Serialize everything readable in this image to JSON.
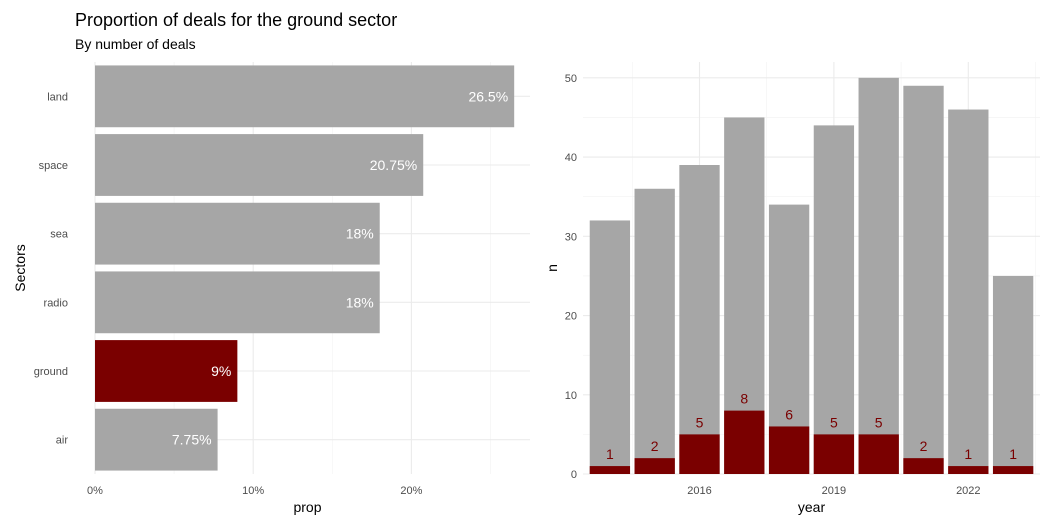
{
  "title": "Proportion of deals for the ground sector",
  "subtitle": "By number of deals",
  "colors": {
    "highlight": "#7a0000",
    "base": "#a6a6a6",
    "grid": "#ebebeb",
    "axis_text": "#4d4d4d"
  },
  "chart_data": [
    {
      "type": "bar",
      "orientation": "horizontal",
      "xlabel": "prop",
      "ylabel": "Sectors",
      "xlim": [
        0,
        0.275
      ],
      "xticks": [
        {
          "value": 0,
          "label": "0%"
        },
        {
          "value": 0.1,
          "label": "10%"
        },
        {
          "value": 0.2,
          "label": "20%"
        }
      ],
      "categories": [
        "land",
        "space",
        "sea",
        "radio",
        "ground",
        "air"
      ],
      "values": [
        0.265,
        0.2075,
        0.18,
        0.18,
        0.09,
        0.0775
      ],
      "labels": [
        "26.5%",
        "20.75%",
        "18%",
        "18%",
        "9%",
        "7.75%"
      ],
      "highlight": "ground",
      "grid": true
    },
    {
      "type": "bar",
      "stacked": "overlay",
      "xlabel": "year",
      "ylabel": "n",
      "ylim": [
        0,
        52
      ],
      "yticks": [
        0,
        10,
        20,
        30,
        40,
        50
      ],
      "xticks": [
        {
          "value": 2016,
          "label": "2016"
        },
        {
          "value": 2019,
          "label": "2019"
        },
        {
          "value": 2022,
          "label": "2022"
        }
      ],
      "x": [
        2014,
        2015,
        2016,
        2017,
        2018,
        2019,
        2020,
        2021,
        2022,
        2023
      ],
      "series": [
        {
          "values": [
            32,
            36,
            39,
            45,
            34,
            44,
            50,
            49,
            46,
            25
          ]
        },
        {
          "values": [
            1,
            2,
            5,
            8,
            6,
            5,
            5,
            2,
            1,
            1
          ]
        }
      ],
      "grid": true
    }
  ]
}
